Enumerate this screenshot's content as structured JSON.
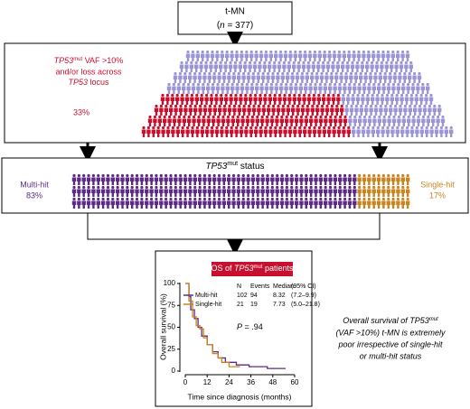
{
  "top_box": {
    "label": "t-MN",
    "n": [
      "n",
      " = 377"
    ]
  },
  "box1": {
    "text_lines": [
      [
        "TP53",
        "mut",
        " VAF >10%"
      ],
      [
        "and/or loss across"
      ],
      [
        "TP53",
        " locus"
      ]
    ],
    "percent": "33%"
  },
  "box2": {
    "title": [
      "TP53",
      "mut",
      " status"
    ],
    "left_label": "Multi-hit",
    "left_percent": "83%",
    "right_label": "Single-hit",
    "right_percent": "17%"
  },
  "side_note": [
    [
      "Overall survival of ",
      "TP53",
      "mut"
    ],
    [
      "(VAF >10%) t-MN is extremely"
    ],
    [
      "poor irrespective of single-hit"
    ],
    [
      "or multi-hit status"
    ]
  ],
  "chart_data": {
    "type": "step",
    "title": [
      "OS of ",
      "TP53",
      "mut",
      " patients"
    ],
    "xlabel": "Time since diagnosis (months)",
    "ylabel": "Overall survival (%)",
    "xlim": [
      0,
      60
    ],
    "xticks": [
      0,
      12,
      24,
      36,
      48,
      60
    ],
    "ylim": [
      0,
      100
    ],
    "yticks": [
      0,
      25,
      50,
      75,
      100
    ],
    "series": [
      {
        "name": "Multi-hit",
        "color": "#5b2a86",
        "x": [
          0,
          2,
          3,
          5,
          7,
          9,
          12,
          15,
          18,
          22,
          28,
          35,
          45,
          55
        ],
        "values": [
          100,
          85,
          70,
          60,
          50,
          40,
          30,
          22,
          15,
          10,
          7,
          5,
          3,
          3
        ]
      },
      {
        "name": "Single-hit",
        "color": "#c8841e",
        "x": [
          0,
          2,
          4,
          6,
          8,
          10,
          12,
          15,
          18,
          20,
          24,
          30
        ],
        "values": [
          100,
          80,
          62,
          52,
          48,
          38,
          30,
          20,
          15,
          10,
          5,
          5
        ]
      }
    ],
    "legend_table": {
      "header": [
        "N",
        "Events",
        "Median",
        "(95% CI)"
      ],
      "rows": [
        [
          "102",
          "94",
          "8.32",
          "(7.2–9.9)"
        ],
        [
          "21",
          "19",
          "7.73",
          "(5.0–21.8)"
        ]
      ]
    },
    "annotation": [
      "P",
      " = .94"
    ]
  }
}
